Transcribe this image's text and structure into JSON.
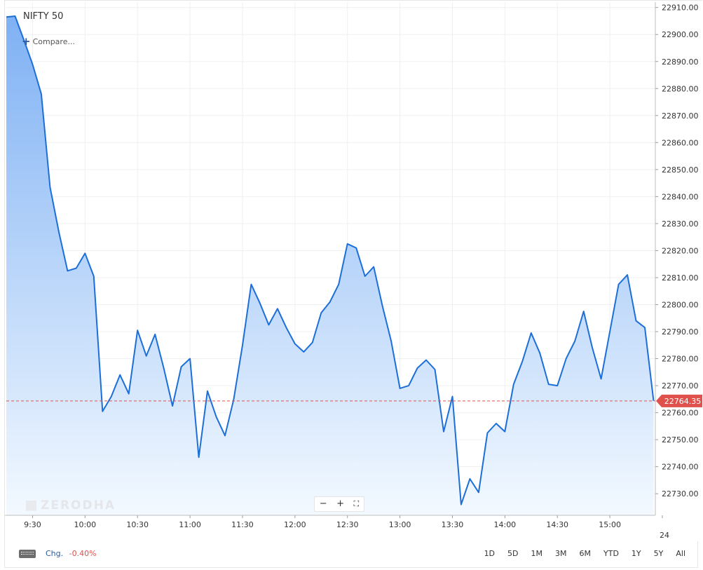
{
  "header": {
    "symbol": "NIFTY 50",
    "compare_label": "Compare..."
  },
  "watermark": "ZERODHA",
  "zoom": {
    "minus": "−",
    "plus": "+",
    "fit": "⛶"
  },
  "footer": {
    "chg_label": "Chg.",
    "chg_value": "-0.40%",
    "ranges": [
      "1D",
      "5D",
      "1M",
      "3M",
      "6M",
      "YTD",
      "1Y",
      "5Y",
      "All"
    ]
  },
  "colors": {
    "line": "#1c6fd8",
    "fill_top": "#7fb1f4",
    "fill_bottom": "#f3f9ff",
    "last_price_tag": "#e0514c",
    "grid": "#f0f0f0"
  },
  "chart_data": {
    "type": "area",
    "ylim": [
      22722,
      22912
    ],
    "xlim": [
      0,
      371
    ],
    "yticks": [
      22910,
      22900,
      22890,
      22880,
      22870,
      22860,
      22850,
      22840,
      22830,
      22820,
      22810,
      22800,
      22790,
      22780,
      22770,
      22760,
      22750,
      22740,
      22730
    ],
    "ytick_labels": [
      "22910.00",
      "22900.00",
      "22890.00",
      "22880.00",
      "22870.00",
      "22860.00",
      "22850.00",
      "22840.00",
      "22830.00",
      "22820.00",
      "22810.00",
      "22800.00",
      "22790.00",
      "22780.00",
      "22770.00",
      "22760.00",
      "22750.00",
      "22740.00",
      "22730.00"
    ],
    "xticks": [
      15,
      45,
      75,
      105,
      135,
      165,
      195,
      225,
      255,
      285,
      315,
      345,
      375
    ],
    "xtick_labels": [
      "9:30",
      "10:00",
      "10:30",
      "11:00",
      "11:30",
      "12:00",
      "12:30",
      "13:00",
      "13:30",
      "14:00",
      "14:30",
      "15:00",
      "24"
    ],
    "last_price": 22764.35,
    "last_price_label": "22764.35",
    "series": [
      {
        "x": [
          0,
          5,
          10,
          15,
          20,
          25,
          30,
          35,
          40,
          45,
          50,
          55,
          60,
          65,
          70,
          75,
          80,
          85,
          90,
          95,
          100,
          105,
          110,
          115,
          120,
          125,
          130,
          135,
          140,
          145,
          150,
          155,
          160,
          165,
          170,
          175,
          180,
          185,
          190,
          195,
          200,
          205,
          210,
          215,
          220,
          225,
          230,
          235,
          240,
          245,
          250,
          255,
          260,
          265,
          270,
          275,
          280,
          285,
          290,
          295,
          300,
          305,
          310,
          315,
          320,
          325,
          330,
          335,
          340,
          345,
          350,
          355,
          360,
          365,
          370
        ],
        "y": [
          22906.5,
          22906.8,
          22898,
          22889,
          22878,
          22843.5,
          22827,
          22812.5,
          22813.5,
          22819,
          22810.5,
          22760.5,
          22766,
          22774,
          22767,
          22790.5,
          22781,
          22789,
          22776.5,
          22762.5,
          22777,
          22780,
          22743.5,
          22768,
          22758.5,
          22751.5,
          22765,
          22785,
          22807.5,
          22800.5,
          22792.5,
          22798.5,
          22791.5,
          22785.5,
          22782.5,
          22786,
          22797,
          22801,
          22807.5,
          22822.5,
          22821,
          22810.5,
          22814,
          22799.5,
          22786.5,
          22769,
          22770,
          22776.5,
          22779.5,
          22776,
          22753,
          22766,
          22726,
          22735.5,
          22730.5,
          22752.5,
          22756,
          22753,
          22770.5,
          22779,
          22789.5,
          22782,
          22770.5,
          22770,
          22780,
          22786.5,
          22797.5,
          22784,
          22772.5,
          22790,
          22807.5,
          22811,
          22794,
          22791.5,
          22764.35
        ]
      }
    ]
  }
}
